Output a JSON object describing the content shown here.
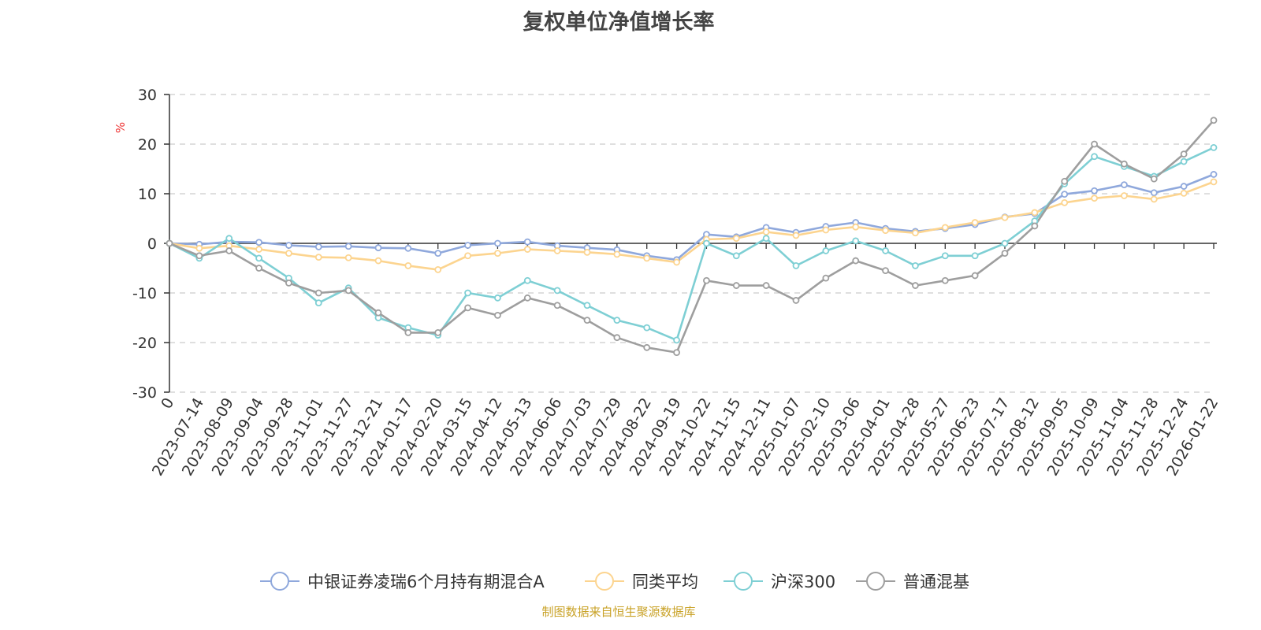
{
  "chart_data": {
    "type": "line",
    "title": "复权单位净值增长率",
    "ylabel": "%",
    "ylim": [
      -30,
      30
    ],
    "yticks": [
      30,
      20,
      10,
      0,
      -10,
      -20,
      -30
    ],
    "grid": true,
    "legend_position": "bottom",
    "x_labels": [
      "0",
      "2023-07-14",
      "2023-08-09",
      "2023-09-04",
      "2023-09-28",
      "2023-11-01",
      "2023-11-27",
      "2023-12-21",
      "2024-01-17",
      "2024-02-20",
      "2024-03-15",
      "2024-04-12",
      "2024-05-13",
      "2024-06-06",
      "2024-07-03",
      "2024-07-29",
      "2024-08-22",
      "2024-09-19",
      "2024-10-22",
      "2024-11-15",
      "2024-12-11",
      "2025-01-07",
      "2025-02-10",
      "2025-03-06",
      "2025-04-01",
      "2025-04-28",
      "2025-05-27",
      "2025-06-23",
      "2025-07-17",
      "2025-08-12",
      "2025-09-05",
      "2025-10-09",
      "2025-11-04",
      "2025-11-28",
      "2025-12-24",
      "2026-01-22"
    ],
    "series": [
      {
        "name": "中银证券凌瑞6个月持有期混合A",
        "color": "#8fa8dc",
        "values": [
          0,
          -0.2,
          0.3,
          0.2,
          -0.4,
          -0.7,
          -0.6,
          -0.9,
          -1.0,
          -2.0,
          -0.4,
          0.0,
          0.3,
          -0.5,
          -0.9,
          -1.3,
          -2.5,
          -3.3,
          1.8,
          1.3,
          3.2,
          2.2,
          3.4,
          4.2,
          3.0,
          2.4,
          3.0,
          3.8,
          5.3,
          6.0,
          9.9,
          10.6,
          11.8,
          10.2,
          11.5,
          13.9
        ]
      },
      {
        "name": "同类平均",
        "color": "#fcd48f",
        "values": [
          0,
          -1.0,
          -0.5,
          -1.2,
          -2.0,
          -2.8,
          -2.9,
          -3.5,
          -4.5,
          -5.3,
          -2.5,
          -2.0,
          -1.2,
          -1.5,
          -1.8,
          -2.2,
          -3.0,
          -3.8,
          0.8,
          1.0,
          2.3,
          1.6,
          2.7,
          3.3,
          2.6,
          2.1,
          3.2,
          4.2,
          5.2,
          6.2,
          8.2,
          9.1,
          9.6,
          8.9,
          10.1,
          12.4
        ]
      },
      {
        "name": "沪深300",
        "color": "#7ecfd4",
        "values": [
          0,
          -3.0,
          1.0,
          -3.0,
          -7.0,
          -12.0,
          -9.0,
          -15.0,
          -17.0,
          -18.5,
          -10.0,
          -11.0,
          -7.5,
          -9.5,
          -12.5,
          -15.5,
          -17.0,
          -19.5,
          0.0,
          -2.5,
          1.0,
          -4.5,
          -1.5,
          0.5,
          -1.5,
          -4.5,
          -2.5,
          -2.5,
          0.0,
          4.5,
          12.0,
          17.5,
          15.5,
          13.5,
          16.5,
          19.3
        ]
      },
      {
        "name": "普通混基",
        "color": "#9e9e9e",
        "values": [
          0,
          -2.5,
          -1.5,
          -5.0,
          -8.0,
          -10.0,
          -9.5,
          -14.0,
          -18.0,
          -18.0,
          -13.0,
          -14.5,
          -11.0,
          -12.5,
          -15.5,
          -19.0,
          -21.0,
          -22.0,
          -7.5,
          -8.5,
          -8.5,
          -11.5,
          -7.0,
          -3.5,
          -5.5,
          -8.5,
          -7.5,
          -6.5,
          -2.0,
          3.5,
          12.5,
          20.0,
          16.0,
          13.0,
          18.0,
          24.8
        ]
      }
    ]
  },
  "footer": {
    "source": "制图数据来自恒生聚源数据库"
  }
}
